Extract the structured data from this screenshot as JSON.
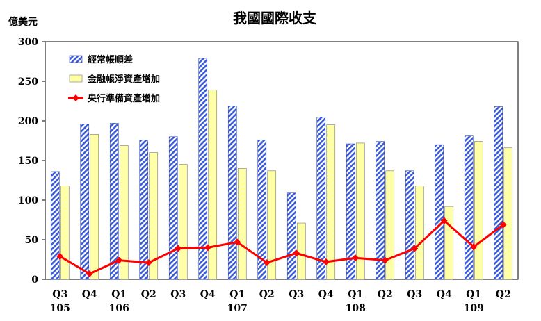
{
  "chart_data": {
    "type": "bar",
    "title": "我國國際收支",
    "ylabel": "億美元",
    "xlabel": "",
    "ylim": [
      0,
      300
    ],
    "yticks": [
      0,
      50,
      100,
      150,
      200,
      250,
      300
    ],
    "grid": false,
    "legend_position": "top-left",
    "categories": [
      "Q3",
      "Q4",
      "Q1",
      "Q2",
      "Q3",
      "Q4",
      "Q1",
      "Q2",
      "Q3",
      "Q4",
      "Q1",
      "Q2",
      "Q3",
      "Q4",
      "Q1",
      "Q2"
    ],
    "years": [
      {
        "label": "105",
        "index": 0
      },
      {
        "label": "106",
        "index": 2
      },
      {
        "label": "107",
        "index": 6
      },
      {
        "label": "108",
        "index": 10
      },
      {
        "label": "109",
        "index": 14
      }
    ],
    "series": [
      {
        "name": "經常帳順差",
        "type": "bar",
        "pattern": "hatch",
        "color": "#3b5bd9",
        "values": [
          136,
          196,
          197,
          176,
          180,
          279,
          219,
          176,
          109,
          205,
          171,
          174,
          137,
          170,
          181,
          218
        ]
      },
      {
        "name": "金融帳淨資產增加",
        "type": "bar",
        "color": "#ffffa8",
        "values": [
          118,
          183,
          169,
          160,
          145,
          239,
          140,
          137,
          71,
          195,
          172,
          137,
          118,
          92,
          174,
          166
        ]
      },
      {
        "name": "央行準備資產增加",
        "type": "line",
        "color": "#ff0000",
        "values": [
          29,
          7,
          24,
          21,
          39,
          40,
          47,
          21,
          33,
          22,
          27,
          24,
          39,
          74,
          41,
          69
        ]
      }
    ]
  }
}
